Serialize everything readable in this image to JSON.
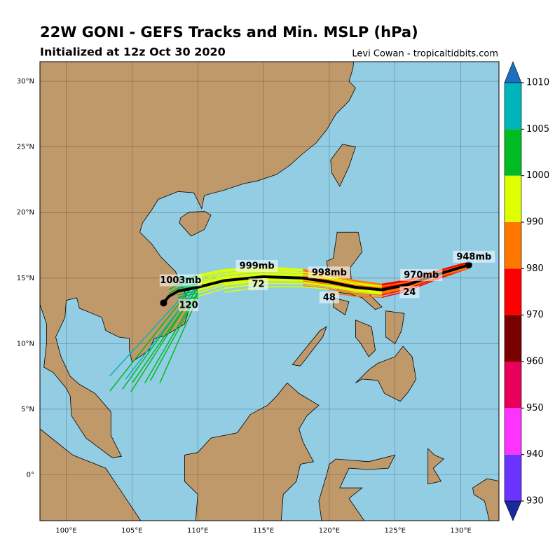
{
  "title": "22W GONI - GEFS Tracks and Min. MSLP (hPa)",
  "subtitle": "Initialized at 12z Oct 30 2020",
  "credit": "Levi Cowan - tropicaltidbits.com",
  "map": {
    "xlim": [
      98,
      132.9
    ],
    "ylim": [
      -3.5,
      31.5
    ],
    "xticks": [
      {
        "value": 100,
        "label": "100°E"
      },
      {
        "value": 105,
        "label": "105°E"
      },
      {
        "value": 110,
        "label": "110°E"
      },
      {
        "value": 115,
        "label": "115°E"
      },
      {
        "value": 120,
        "label": "120°E"
      },
      {
        "value": 125,
        "label": "125°E"
      },
      {
        "value": 130,
        "label": "130°E"
      }
    ],
    "yticks": [
      {
        "value": 0,
        "label": "0°"
      },
      {
        "value": 5,
        "label": "5°N"
      },
      {
        "value": 10,
        "label": "10°N"
      },
      {
        "value": 15,
        "label": "15°N"
      },
      {
        "value": 20,
        "label": "20°N"
      },
      {
        "value": 25,
        "label": "25°N"
      },
      {
        "value": 30,
        "label": "30°N"
      }
    ]
  },
  "mean_track": {
    "lon": [
      130.6,
      128,
      126,
      124,
      122,
      120,
      118,
      115,
      112,
      110,
      108.5,
      107.8,
      107.4
    ],
    "lat": [
      16.0,
      15.2,
      14.5,
      14.1,
      14.3,
      14.7,
      15.0,
      15.1,
      14.8,
      14.3,
      14.0,
      13.6,
      13.1
    ]
  },
  "track_labels": [
    "948mb",
    "970mb",
    "998mb",
    "999mb",
    "1003mb"
  ],
  "hour_labels": [
    "24",
    "48",
    "72",
    "120"
  ],
  "colorbar": {
    "ticks": [
      930,
      940,
      950,
      960,
      970,
      980,
      990,
      1000,
      1005,
      1010
    ],
    "colors": [
      "#6a33ff",
      "#ff33ff",
      "#e8005a",
      "#7a0000",
      "#ff0000",
      "#ff7700",
      "#ddff00",
      "#00bb22",
      "#00b4bb"
    ],
    "under": "#1a2a9a",
    "over": "#1a6fbf"
  }
}
